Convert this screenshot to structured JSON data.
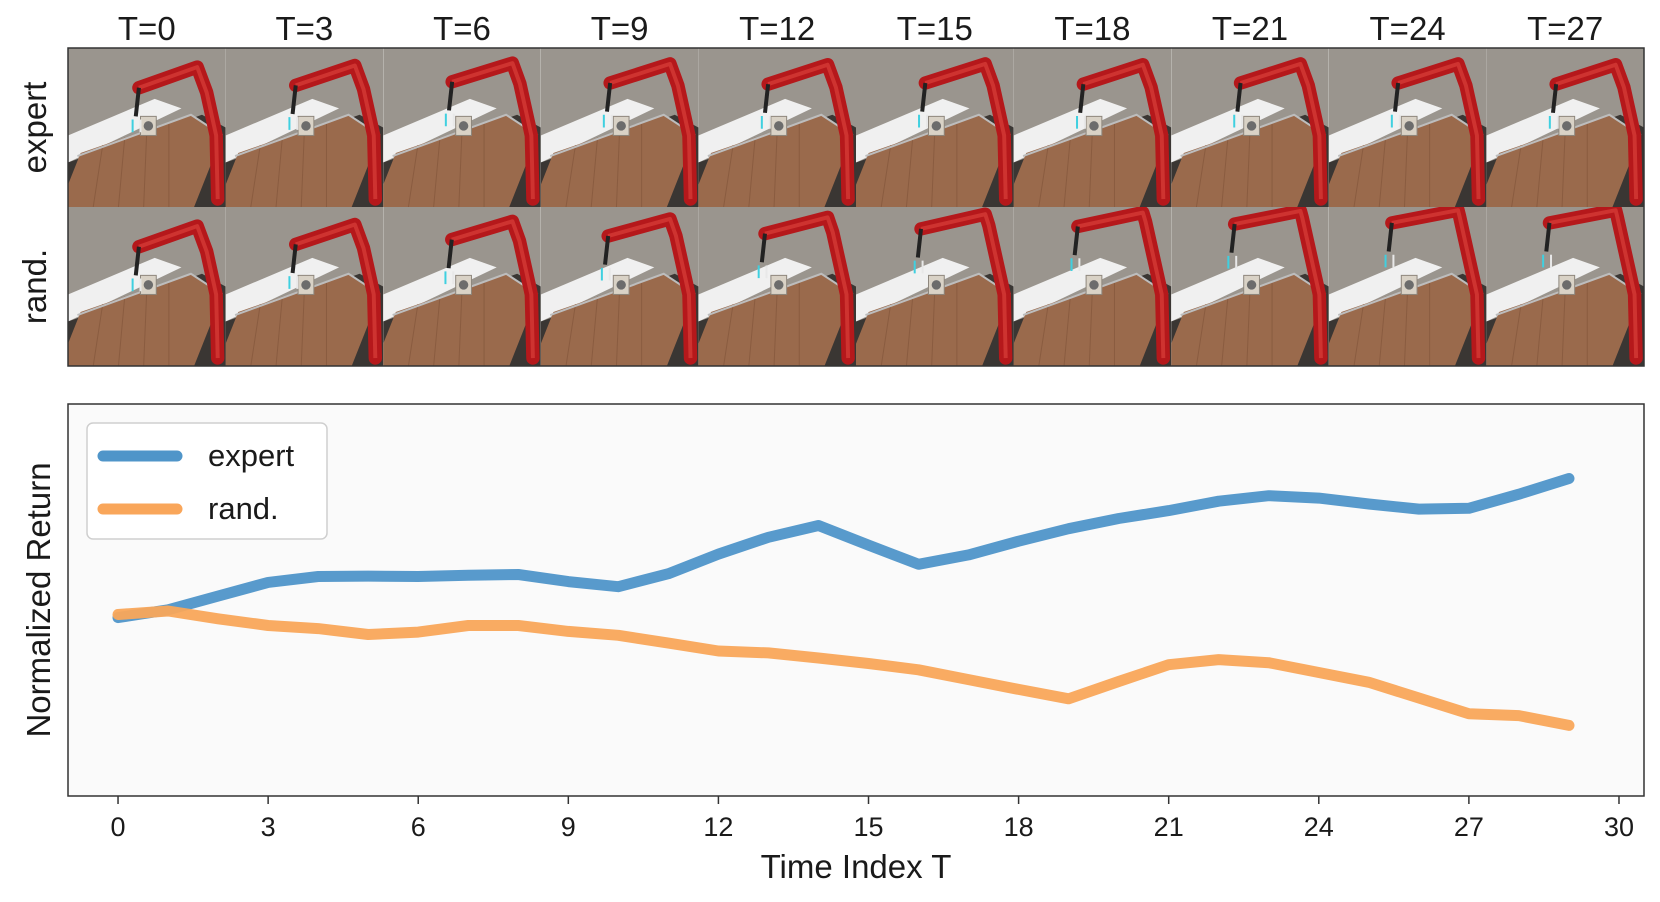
{
  "filmstrip": {
    "timesteps": [
      "T=0",
      "T=3",
      "T=6",
      "T=9",
      "T=12",
      "T=15",
      "T=18",
      "T=21",
      "T=24",
      "T=27"
    ],
    "rows": [
      {
        "label": "expert",
        "arm_lift": [
          0,
          0.1,
          0.25,
          0.2,
          0.15,
          0.2,
          0.15,
          0.2,
          0.2,
          0.15
        ]
      },
      {
        "label": "rand.",
        "arm_lift": [
          0,
          0.1,
          0.3,
          0.45,
          0.55,
          0.75,
          0.85,
          0.95,
          1.0,
          1.0
        ]
      }
    ],
    "colors": {
      "wall": "#9a958e",
      "table": "#9a6a4c",
      "arm": "#b5181b",
      "ledge": "#f0f0f0"
    }
  },
  "chart_data": {
    "type": "line",
    "title": "",
    "xlabel": "Time Index T",
    "ylabel": "Normalized Return",
    "xlim": [
      -1,
      30.5
    ],
    "ylim": [
      0.0,
      1.0
    ],
    "xticks": [
      0,
      3,
      6,
      9,
      12,
      15,
      18,
      21,
      24,
      27,
      30
    ],
    "yticks_visible": false,
    "grid": false,
    "legend_position": "top-left",
    "background": "#fafafa",
    "series": [
      {
        "name": "expert",
        "color": "#4f95c9",
        "x": [
          0,
          1,
          2,
          3,
          4,
          5,
          6,
          7,
          8,
          9,
          10,
          11,
          12,
          13,
          14,
          15,
          16,
          17,
          18,
          19,
          20,
          21,
          22,
          23,
          24,
          25,
          26,
          27,
          28,
          29
        ],
        "y": [
          0.455,
          0.475,
          0.51,
          0.545,
          0.56,
          0.561,
          0.56,
          0.563,
          0.565,
          0.547,
          0.534,
          0.567,
          0.617,
          0.66,
          0.69,
          0.64,
          0.591,
          0.615,
          0.65,
          0.682,
          0.708,
          0.728,
          0.752,
          0.766,
          0.76,
          0.745,
          0.732,
          0.734,
          0.77,
          0.81
        ]
      },
      {
        "name": "rand.",
        "color": "#f9a65a",
        "x": [
          0,
          1,
          2,
          3,
          4,
          5,
          6,
          7,
          8,
          9,
          10,
          11,
          12,
          13,
          14,
          15,
          16,
          17,
          18,
          19,
          20,
          21,
          22,
          23,
          24,
          25,
          26,
          27,
          28,
          29
        ],
        "y": [
          0.463,
          0.472,
          0.452,
          0.435,
          0.427,
          0.412,
          0.418,
          0.435,
          0.435,
          0.42,
          0.41,
          0.39,
          0.37,
          0.365,
          0.352,
          0.338,
          0.322,
          0.297,
          0.272,
          0.248,
          0.292,
          0.335,
          0.348,
          0.34,
          0.315,
          0.29,
          0.25,
          0.21,
          0.205,
          0.18
        ]
      }
    ]
  }
}
